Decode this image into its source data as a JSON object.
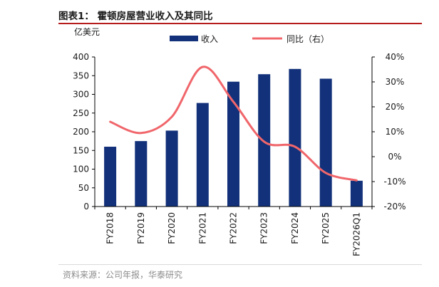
{
  "figure": {
    "title": "图表1：  霍顿房屋营业收入及其同比",
    "source": "资料来源：公司年报，华泰研究"
  },
  "colors": {
    "bar": "#12317a",
    "line": "#f0666b"
  },
  "chart_data": {
    "type": "bar",
    "title": "霍顿房屋营业收入及其同比",
    "categories": [
      "FY2018",
      "FY2019",
      "FY2020",
      "FY2021",
      "FY2022",
      "FY2023",
      "FY2024",
      "FY2025",
      "FY2026Q1"
    ],
    "y_left_label": "亿美元",
    "ylim_left": [
      0,
      400
    ],
    "yticks_left": [
      "0",
      "50",
      "100",
      "150",
      "200",
      "250",
      "300",
      "350",
      "400"
    ],
    "ylim_right": [
      -20,
      40
    ],
    "yticks_right": [
      "-20%",
      "-10%",
      "0%",
      "10%",
      "20%",
      "30%",
      "40%"
    ],
    "grid": false,
    "legend_position": "top",
    "series": [
      {
        "name": "收入",
        "type": "bar",
        "axis": "left",
        "values": [
          160,
          175,
          203,
          277,
          334,
          354,
          368,
          342,
          69
        ]
      },
      {
        "name": "同比（右）",
        "type": "line",
        "axis": "right",
        "values": [
          14,
          9.5,
          16,
          36,
          22,
          6,
          4,
          -6.5,
          -9.5
        ]
      }
    ]
  }
}
